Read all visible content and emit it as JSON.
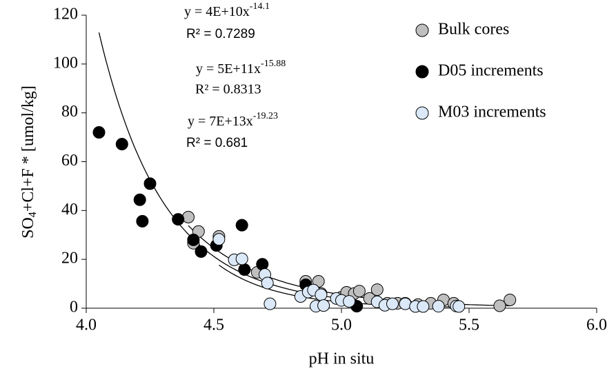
{
  "chart_data": {
    "type": "scatter",
    "xlabel": "pH in situ",
    "ylabel": [
      "SO",
      "4",
      "+Cl+F * [umol/kg]"
    ],
    "xlim": [
      4,
      6
    ],
    "ylim": [
      0,
      120
    ],
    "xticks": [
      {
        "value": 4,
        "label": "4.0"
      },
      {
        "value": 4.5,
        "label": "4.5"
      },
      {
        "value": 5,
        "label": "5.0"
      },
      {
        "value": 5.5,
        "label": "5.5"
      },
      {
        "value": 6,
        "label": "6.0"
      }
    ],
    "yticks": [
      0,
      20,
      40,
      60,
      80,
      100,
      120
    ],
    "grid": false,
    "legend": "top-right",
    "series": [
      {
        "name": "Bulk cores",
        "color": "#bfbfbf",
        "x": [
          4.4,
          4.44,
          4.42,
          4.52,
          4.67,
          4.86,
          4.91,
          4.92,
          5.0,
          5.02,
          5.05,
          5.07,
          5.11,
          5.14,
          5.18,
          5.22,
          5.25,
          5.3,
          5.35,
          5.4,
          5.44,
          5.62,
          5.66
        ],
        "values": [
          37.3,
          31.4,
          26.6,
          29.4,
          14.7,
          11,
          11,
          6,
          4.5,
          6.5,
          6,
          7,
          4,
          7.6,
          2,
          2,
          2,
          1.5,
          2,
          3.4,
          2,
          1,
          3.4
        ],
        "trendline": {
          "label": "y = 4E+10x",
          "coefficient": 40000000000,
          "exponent": -14.1,
          "r_squared_label": "R² = 0.7289"
        }
      },
      {
        "name": "D05 increments",
        "color": "#000000",
        "x": [
          4.05,
          4.14,
          4.25,
          4.21,
          4.22,
          4.36,
          4.42,
          4.45,
          4.51,
          4.61,
          4.62,
          4.69,
          4.86,
          5.06
        ],
        "values": [
          72,
          67.2,
          51,
          44.4,
          35.6,
          36.4,
          28,
          23.2,
          25.7,
          34,
          15.8,
          18,
          9.6,
          0.8
        ],
        "trendline": {
          "label": "y = 5E+11x",
          "coefficient": 500000000000,
          "exponent": -15.88,
          "r_squared_label": "R² = 0.8313"
        }
      },
      {
        "name": "M03 increments",
        "color": "#dae8f8",
        "x": [
          4.52,
          4.58,
          4.61,
          4.7,
          4.71,
          4.72,
          4.84,
          4.87,
          4.89,
          4.9,
          4.92,
          4.93,
          4.98,
          5.0,
          5.03,
          5.14,
          5.17,
          5.2,
          5.25,
          5.29,
          5.32,
          5.38,
          5.45,
          5.46
        ],
        "values": [
          28.2,
          19.8,
          20.2,
          13.8,
          10.3,
          1.8,
          4.8,
          6.6,
          7.4,
          0.8,
          5.5,
          1.1,
          4.0,
          3.2,
          2.8,
          2.6,
          1.2,
          1.8,
          1.8,
          0.7,
          0.7,
          0.8,
          0.9,
          0.7
        ],
        "trendline": {
          "label": "y = 7E+13x",
          "coefficient": 70000000000000,
          "exponent": -19.23,
          "r_squared_label": "R² = 0.681"
        }
      }
    ]
  }
}
